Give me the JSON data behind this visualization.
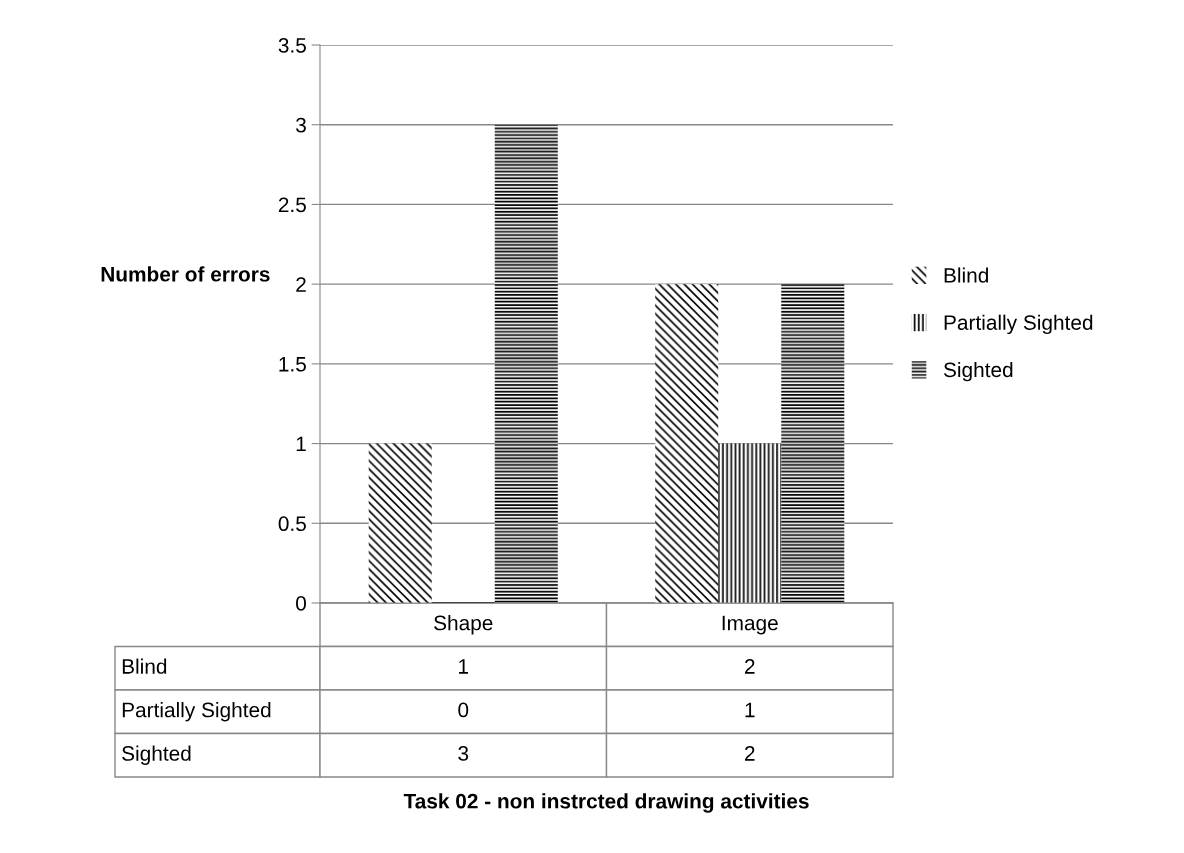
{
  "chart_data": {
    "type": "bar",
    "annotations": [
      "Task 02 - non instrcted drawing activities"
    ],
    "ylabel": "Number of errors",
    "categories": [
      "Shape",
      "Image"
    ],
    "series": [
      {
        "name": "Blind",
        "color": "#000000",
        "values": [
          1,
          2
        ]
      },
      {
        "name": "Partially Sighted",
        "color": "#000000",
        "values": [
          0,
          1
        ]
      },
      {
        "name": "Sighted",
        "color": "#000000",
        "values": [
          3,
          2
        ]
      }
    ],
    "ylim": [
      0,
      3.5
    ],
    "yticks": [
      0,
      0.5,
      1,
      1.5,
      2,
      2.5,
      3,
      3.5
    ],
    "grid": "y",
    "legend": "right",
    "data_labels": true
  }
}
